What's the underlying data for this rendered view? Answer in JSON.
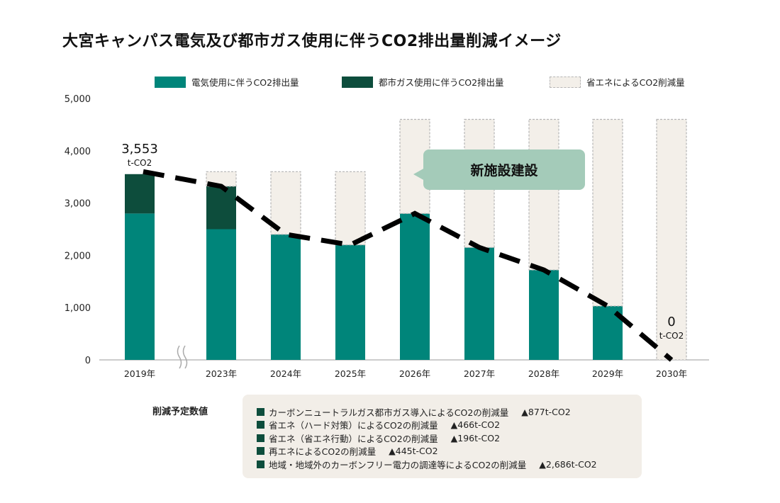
{
  "title": "大宮キャンパス電気及び都市ガス使用に伴うCO2排出量削減イメージ",
  "colors": {
    "electric": "#00857a",
    "gas": "#0d4d3c",
    "reduction": "#f3efe9",
    "reduction_border": "#b5b5b5",
    "bubble": "#a4cbb9"
  },
  "chart_data": {
    "type": "bar",
    "stacked": true,
    "categories": [
      "2019年",
      "2023年",
      "2024年",
      "2025年",
      "2026年",
      "2027年",
      "2028年",
      "2029年",
      "2030年"
    ],
    "series": [
      {
        "name": "電気使用に伴うCO2排出量",
        "values": [
          2800,
          2500,
          2400,
          2200,
          2800,
          2150,
          1720,
          1030,
          0
        ]
      },
      {
        "name": "都市ガス使用に伴うCO2排出量",
        "values": [
          753,
          820,
          0,
          0,
          0,
          0,
          0,
          0,
          0
        ]
      },
      {
        "name": "省エネによるCO2削減量",
        "values": [
          0,
          280,
          1200,
          1400,
          1800,
          2450,
          2880,
          3570,
          4600
        ]
      }
    ],
    "trend_line": [
      3553,
      3320,
      2400,
      2200,
      2800,
      2150,
      1720,
      1030,
      0
    ],
    "ylim": [
      0,
      5000
    ],
    "yticks": [
      "0",
      "1,000",
      "2,000",
      "3,000",
      "4,000",
      "5,000"
    ],
    "ytick_values": [
      0,
      1000,
      2000,
      3000,
      4000,
      5000
    ],
    "legend_position": "top",
    "grid": false,
    "axis_break_after": "2019年",
    "annotations": {
      "start_value": "3,553",
      "start_unit": "t-CO2",
      "end_value": "0",
      "end_unit": "t-CO2",
      "bubble": "新施設建設"
    }
  },
  "schedule": {
    "label": "削減予定数値",
    "items": [
      {
        "text": "カーボンニュートラルガス都市ガス導入によるCO2の削減量",
        "value": "▲877t-CO2"
      },
      {
        "text": "省エネ（ハード対策）によるCO2の削減量",
        "value": "▲466t-CO2"
      },
      {
        "text": "省エネ（省エネ行動）によるCO2の削減量",
        "value": "▲196t-CO2"
      },
      {
        "text": "再エネによるCO2の削減量",
        "value": "▲445t-CO2"
      },
      {
        "text": "地域・地域外のカーボンフリー電力の調達等によるCO2の削減量",
        "value": "▲2,686t-CO2"
      }
    ]
  }
}
